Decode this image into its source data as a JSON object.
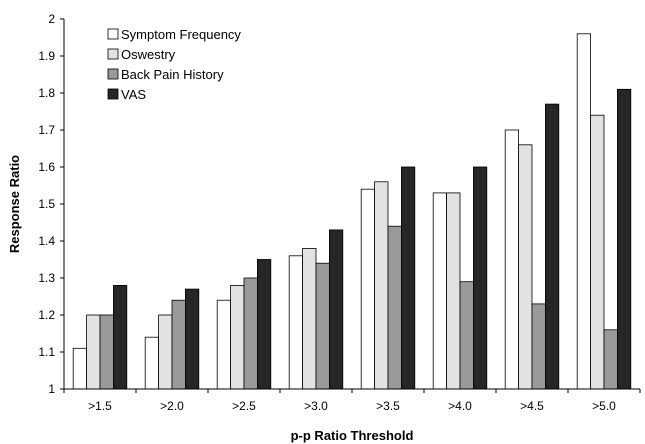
{
  "chart_data": {
    "type": "bar",
    "categories": [
      ">1.5",
      ">2.0",
      ">2.5",
      ">3.0",
      ">3.5",
      ">4.0",
      ">4.5",
      ">5.0"
    ],
    "series": [
      {
        "name": "Symptom Frequency",
        "color": "#ffffff",
        "values": [
          1.11,
          1.14,
          1.24,
          1.36,
          1.54,
          1.53,
          1.7,
          1.96
        ]
      },
      {
        "name": "Oswestry",
        "color": "#e2e2e2",
        "values": [
          1.2,
          1.2,
          1.28,
          1.38,
          1.56,
          1.53,
          1.66,
          1.74
        ]
      },
      {
        "name": "Back Pain History",
        "color": "#9a9a9a",
        "values": [
          1.2,
          1.24,
          1.3,
          1.34,
          1.44,
          1.29,
          1.23,
          1.16
        ]
      },
      {
        "name": "VAS",
        "color": "#262626",
        "values": [
          1.28,
          1.27,
          1.35,
          1.43,
          1.6,
          1.6,
          1.77,
          1.81
        ]
      }
    ],
    "xlabel": "p-p Ratio Threshold",
    "ylabel": "Response Ratio",
    "ylim": [
      1,
      2
    ],
    "yticks": [
      "1",
      "1.1",
      "1.2",
      "1.3",
      "1.4",
      "1.5",
      "1.6",
      "1.7",
      "1.8",
      "1.9",
      "2"
    ],
    "grid": false,
    "legend_position": "top-left"
  }
}
